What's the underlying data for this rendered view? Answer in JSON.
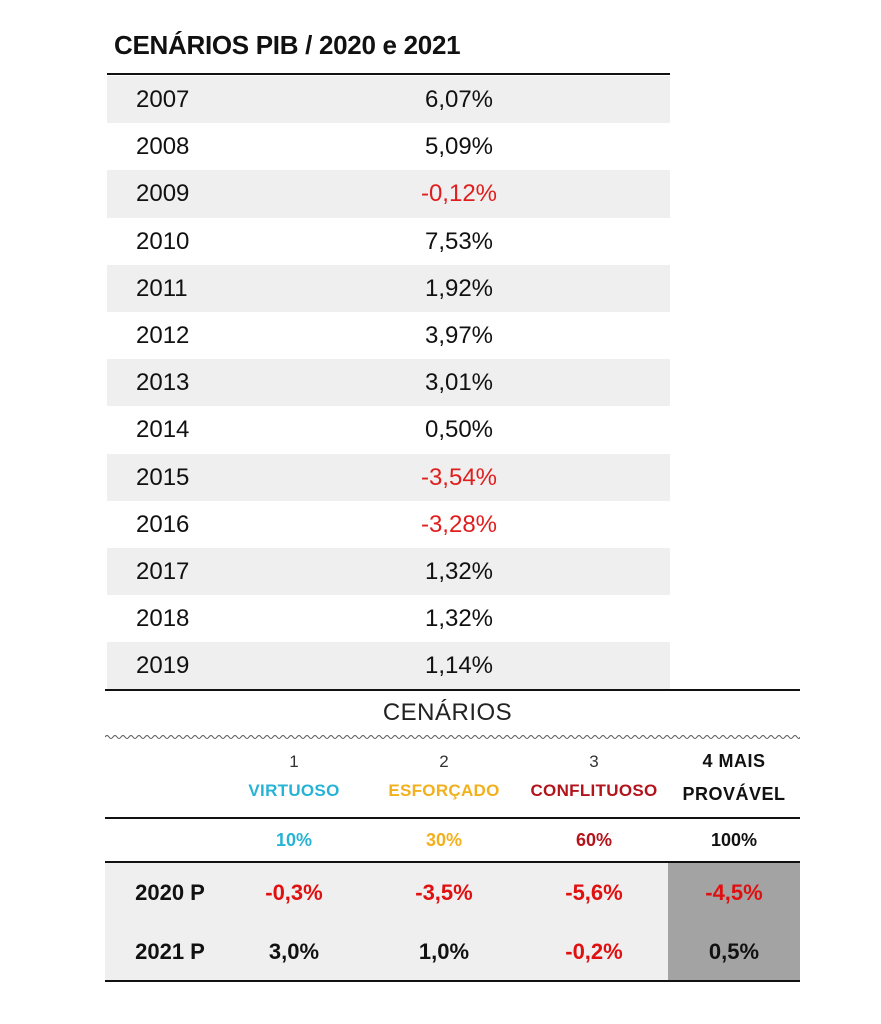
{
  "title": "CENÁRIOS PIB / 2020 e 2021",
  "historical": [
    {
      "year": "2007",
      "value": "6,07%",
      "negative": false
    },
    {
      "year": "2008",
      "value": "5,09%",
      "negative": false
    },
    {
      "year": "2009",
      "value": "-0,12%",
      "negative": true
    },
    {
      "year": "2010",
      "value": "7,53%",
      "negative": false
    },
    {
      "year": "2011",
      "value": "1,92%",
      "negative": false
    },
    {
      "year": "2012",
      "value": "3,97%",
      "negative": false
    },
    {
      "year": "2013",
      "value": "3,01%",
      "negative": false
    },
    {
      "year": "2014",
      "value": "0,50%",
      "negative": false
    },
    {
      "year": "2015",
      "value": "-3,54%",
      "negative": true
    },
    {
      "year": "2016",
      "value": "-3,28%",
      "negative": true
    },
    {
      "year": "2017",
      "value": "1,32%",
      "negative": false
    },
    {
      "year": "2018",
      "value": "1,32%",
      "negative": false
    },
    {
      "year": "2019",
      "value": "1,14%",
      "negative": false
    }
  ],
  "scenarios_title": "CENÁRIOS",
  "scenarios": [
    {
      "number": "1",
      "name": "VIRTUOSO",
      "weight": "10%",
      "color": "#27b3d6"
    },
    {
      "number": "2",
      "name": "ESFORÇADO",
      "weight": "30%",
      "color": "#f2b01c"
    },
    {
      "number": "3",
      "name": "CONFLITUOSO",
      "weight": "60%",
      "color": "#b3141c"
    }
  ],
  "most_likely": {
    "line1": "4  MAIS",
    "line2": "PROVÁVEL",
    "weight": "100%"
  },
  "projections": [
    {
      "label": "2020 P",
      "values": [
        {
          "v": "-0,3%",
          "neg": true
        },
        {
          "v": "-3,5%",
          "neg": true
        },
        {
          "v": "-5,6%",
          "neg": true
        }
      ],
      "most_likely": {
        "v": "-4,5%",
        "neg": true
      }
    },
    {
      "label": "2021 P",
      "values": [
        {
          "v": "3,0%",
          "neg": false
        },
        {
          "v": "1,0%",
          "neg": false
        },
        {
          "v": "-0,2%",
          "neg": true
        }
      ],
      "most_likely": {
        "v": "0,5%",
        "neg": false
      }
    }
  ]
}
